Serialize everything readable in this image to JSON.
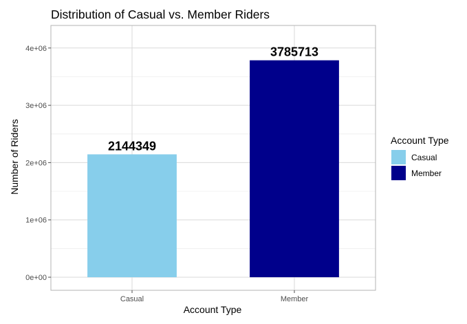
{
  "chart_data": {
    "type": "bar",
    "title": "Distribution of Casual vs. Member Riders",
    "xlabel": "Account Type",
    "ylabel": "Number of Riders",
    "categories": [
      "Casual",
      "Member"
    ],
    "values": [
      2144349,
      3785713
    ],
    "data_labels": [
      "2144349",
      "3785713"
    ],
    "colors": [
      "#87CEEB",
      "#00008B"
    ],
    "ylim": [
      0,
      4400000
    ],
    "yticks": [
      0,
      1000000,
      2000000,
      3000000,
      4000000
    ],
    "ytick_labels": [
      "0e+00",
      "1e+06",
      "2e+06",
      "3e+06",
      "4e+06"
    ],
    "grid": true,
    "legend": {
      "title": "Account Type",
      "placement": "right",
      "items": [
        {
          "label": "Casual",
          "color": "#87CEEB"
        },
        {
          "label": "Member",
          "color": "#00008B"
        }
      ]
    }
  }
}
